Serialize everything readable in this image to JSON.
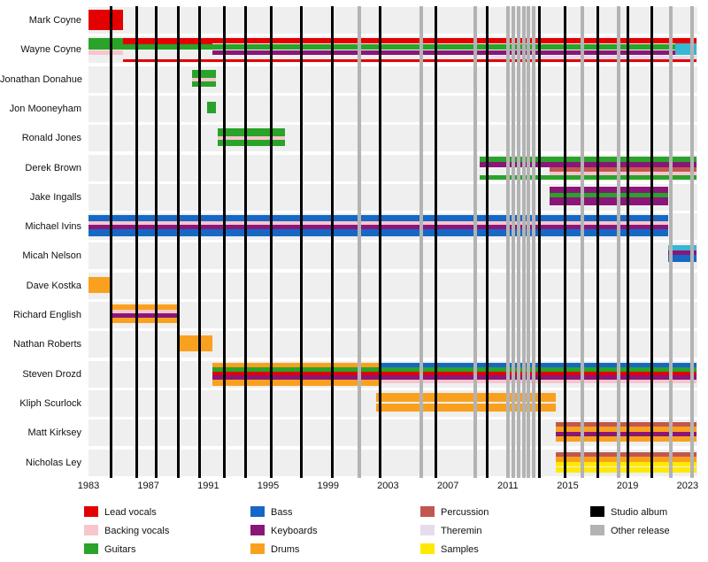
{
  "chart_data": {
    "type": "timeline",
    "description": "Band members timeline with instrument stripes per member and vertical release lines",
    "x_axis": {
      "min": 1983,
      "max": 2023.6,
      "tick_years": [
        1983,
        1987,
        1991,
        1995,
        1999,
        2003,
        2007,
        2011,
        2015,
        2019,
        2023
      ]
    },
    "colors": {
      "lead_vocals": "#e30000",
      "backing_vocals": "#f7c5cc",
      "guitars": "#29a329",
      "bass": "#1668c4",
      "keyboards": "#8a1679",
      "drums": "#f9a11f",
      "percussion": "#c1574f",
      "theremin": "#e6dcee",
      "samples": "#ffe900",
      "studio_album": "#000000",
      "other_release": "#b3b3b3",
      "accent_cyan": "#38b7d2",
      "row_background": "#efefef"
    },
    "members": [
      {
        "name": "Mark Coyne",
        "bars": [
          {
            "instrument": "lead_vocals",
            "start": 1983,
            "end": 1985.3,
            "t": 3,
            "h": 23
          }
        ]
      },
      {
        "name": "Wayne Coyne",
        "bars": [
          {
            "instrument": "guitars",
            "start": 1983,
            "end": 1985.3,
            "t": 2,
            "h": 7
          },
          {
            "instrument": "lead_vocals",
            "start": 1985.3,
            "end": 1991.3,
            "t": 2,
            "h": 8
          },
          {
            "instrument": "lead_vocals",
            "start": 1991.3,
            "end": 2023.6,
            "t": 2,
            "h": 6
          },
          {
            "instrument": "guitars",
            "start": 1983,
            "end": 2023.6,
            "t": 9,
            "h": 6
          },
          {
            "instrument": "backing_vocals",
            "start": 1983,
            "end": 1985.3,
            "t": 16,
            "h": 5
          },
          {
            "instrument": "keyboards",
            "start": 1991.3,
            "end": 2023.6,
            "t": 16,
            "h": 5
          },
          {
            "instrument": "theremin",
            "start": 2009.6,
            "end": 2023.6,
            "t": 22,
            "h": 4
          },
          {
            "instrument": "lead_vocals",
            "start": 1985.3,
            "end": 2023.6,
            "t": 26,
            "h": 3
          },
          {
            "instrument": "accent_cyan",
            "start": 2022.2,
            "end": 2023.6,
            "t": 8,
            "h": 13
          }
        ]
      },
      {
        "name": "Jonathan Donahue",
        "bars": [
          {
            "instrument": "guitars",
            "start": 1989.9,
            "end": 1991.5,
            "t": 4,
            "h": 9
          },
          {
            "instrument": "backing_vocals",
            "start": 1989.9,
            "end": 1991.5,
            "t": 13,
            "h": 4
          },
          {
            "instrument": "guitars",
            "start": 1989.9,
            "end": 1991.5,
            "t": 17,
            "h": 6
          }
        ]
      },
      {
        "name": "Jon Mooneyham",
        "bars": [
          {
            "instrument": "guitars",
            "start": 1990.9,
            "end": 1991.5,
            "t": 7,
            "h": 13
          }
        ]
      },
      {
        "name": "Ronald Jones",
        "bars": [
          {
            "instrument": "guitars",
            "start": 1991.6,
            "end": 1996.1,
            "t": 4,
            "h": 9
          },
          {
            "instrument": "backing_vocals",
            "start": 1991.6,
            "end": 1996.1,
            "t": 13,
            "h": 4
          },
          {
            "instrument": "guitars",
            "start": 1991.6,
            "end": 1996.1,
            "t": 17,
            "h": 7
          }
        ]
      },
      {
        "name": "Derek Brown",
        "bars": [
          {
            "instrument": "guitars",
            "start": 2009.1,
            "end": 2023.6,
            "t": 2,
            "h": 6
          },
          {
            "instrument": "keyboards",
            "start": 2009.1,
            "end": 2023.6,
            "t": 8,
            "h": 6
          },
          {
            "instrument": "percussion",
            "start": 2013.8,
            "end": 2023.6,
            "t": 14,
            "h": 5
          },
          {
            "instrument": "backing_vocals",
            "start": 2013.8,
            "end": 2023.6,
            "t": 19,
            "h": 4
          },
          {
            "instrument": "guitars",
            "start": 2009.1,
            "end": 2023.6,
            "t": 23,
            "h": 5
          }
        ]
      },
      {
        "name": "Jake Ingalls",
        "bars": [
          {
            "instrument": "keyboards",
            "start": 2013.8,
            "end": 2021.7,
            "t": 3,
            "h": 7
          },
          {
            "instrument": "guitars",
            "start": 2013.8,
            "end": 2021.7,
            "t": 10,
            "h": 5
          },
          {
            "instrument": "keyboards",
            "start": 2013.8,
            "end": 2021.7,
            "t": 15,
            "h": 9
          }
        ]
      },
      {
        "name": "Michael Ivins",
        "bars": [
          {
            "instrument": "bass",
            "start": 1983,
            "end": 2021.7,
            "t": 2,
            "h": 7
          },
          {
            "instrument": "backing_vocals",
            "start": 1983,
            "end": 2021.7,
            "t": 9,
            "h": 4
          },
          {
            "instrument": "keyboards",
            "start": 1983,
            "end": 2021.7,
            "t": 13,
            "h": 5
          },
          {
            "instrument": "bass",
            "start": 1983,
            "end": 2021.7,
            "t": 18,
            "h": 8
          }
        ]
      },
      {
        "name": "Micah Nelson",
        "bars": [
          {
            "instrument": "accent_cyan",
            "start": 2021.7,
            "end": 2023.6,
            "t": 3,
            "h": 6
          },
          {
            "instrument": "keyboards",
            "start": 2021.7,
            "end": 2023.6,
            "t": 9,
            "h": 5
          },
          {
            "instrument": "bass",
            "start": 2021.7,
            "end": 2023.6,
            "t": 14,
            "h": 8
          }
        ]
      },
      {
        "name": "Dave Kostka",
        "bars": [
          {
            "instrument": "drums",
            "start": 1983,
            "end": 1984.4,
            "t": 5,
            "h": 18
          }
        ]
      },
      {
        "name": "Richard English",
        "bars": [
          {
            "instrument": "drums",
            "start": 1984.4,
            "end": 1988.9,
            "t": 3,
            "h": 6
          },
          {
            "instrument": "backing_vocals",
            "start": 1984.4,
            "end": 1988.9,
            "t": 9,
            "h": 4
          },
          {
            "instrument": "keyboards",
            "start": 1984.4,
            "end": 1988.9,
            "t": 13,
            "h": 5
          },
          {
            "instrument": "drums",
            "start": 1984.4,
            "end": 1988.9,
            "t": 18,
            "h": 6
          }
        ]
      },
      {
        "name": "Nathan Roberts",
        "bars": [
          {
            "instrument": "drums",
            "start": 1988.9,
            "end": 1991.3,
            "t": 5,
            "h": 18
          }
        ]
      },
      {
        "name": "Steven Drozd",
        "bars": [
          {
            "instrument": "drums",
            "start": 1991.3,
            "end": 2002.4,
            "t": 2,
            "h": 5
          },
          {
            "instrument": "bass",
            "start": 2002.4,
            "end": 2023.6,
            "t": 2,
            "h": 5
          },
          {
            "instrument": "guitars",
            "start": 1991.3,
            "end": 2023.6,
            "t": 7,
            "h": 5
          },
          {
            "instrument": "lead_vocals",
            "start": 1991.3,
            "end": 2023.6,
            "t": 12,
            "h": 4
          },
          {
            "instrument": "keyboards",
            "start": 1991.3,
            "end": 2023.6,
            "t": 16,
            "h": 5
          },
          {
            "instrument": "drums",
            "start": 1991.3,
            "end": 2002.4,
            "t": 21,
            "h": 7
          },
          {
            "instrument": "backing_vocals",
            "start": 2002.4,
            "end": 2023.6,
            "t": 21,
            "h": 4
          }
        ]
      },
      {
        "name": "Kliph Scurlock",
        "bars": [
          {
            "instrument": "drums",
            "start": 2002.2,
            "end": 2014.2,
            "t": 3,
            "h": 10
          },
          {
            "instrument": "drums",
            "start": 2002.2,
            "end": 2014.2,
            "t": 15,
            "h": 9
          }
        ]
      },
      {
        "name": "Matt Kirksey",
        "bars": [
          {
            "instrument": "percussion",
            "start": 2014.2,
            "end": 2023.6,
            "t": 3,
            "h": 5
          },
          {
            "instrument": "drums",
            "start": 2014.2,
            "end": 2023.6,
            "t": 8,
            "h": 6
          },
          {
            "instrument": "keyboards",
            "start": 2014.2,
            "end": 2023.6,
            "t": 14,
            "h": 5
          },
          {
            "instrument": "drums",
            "start": 2014.2,
            "end": 2023.6,
            "t": 19,
            "h": 6
          }
        ]
      },
      {
        "name": "Nicholas Ley",
        "bars": [
          {
            "instrument": "percussion",
            "start": 2014.2,
            "end": 2023.6,
            "t": 3,
            "h": 5
          },
          {
            "instrument": "drums",
            "start": 2014.2,
            "end": 2023.6,
            "t": 8,
            "h": 6
          },
          {
            "instrument": "samples",
            "start": 2014.2,
            "end": 2023.6,
            "t": 14,
            "h": 5
          },
          {
            "instrument": "samples",
            "start": 2014.2,
            "end": 2023.6,
            "t": 20,
            "h": 6
          }
        ]
      }
    ],
    "releases": {
      "studio_albums": [
        1984.5,
        1986.2,
        1987.5,
        1989.0,
        1990.4,
        1992.1,
        1993.5,
        1995.2,
        1997.2,
        1999.3,
        2002.5,
        2006.2,
        2009.6,
        2013.1,
        2014.8,
        2017.0,
        2019.0,
        2020.6
      ],
      "other_releases": [
        2001.1,
        2005.2,
        2008.8,
        2011.0,
        2011.35,
        2011.7,
        2012.05,
        2012.4,
        2012.75,
        2016.0,
        2018.4,
        2021.9,
        2023.3
      ]
    },
    "legend": [
      {
        "key": "lead_vocals",
        "label": "Lead vocals",
        "col": 0
      },
      {
        "key": "backing_vocals",
        "label": "Backing vocals",
        "col": 0
      },
      {
        "key": "guitars",
        "label": "Guitars",
        "col": 0
      },
      {
        "key": "bass",
        "label": "Bass",
        "col": 1
      },
      {
        "key": "keyboards",
        "label": "Keyboards",
        "col": 1
      },
      {
        "key": "drums",
        "label": "Drums",
        "col": 1
      },
      {
        "key": "percussion",
        "label": "Percussion",
        "col": 2
      },
      {
        "key": "theremin",
        "label": "Theremin",
        "col": 2
      },
      {
        "key": "samples",
        "label": "Samples",
        "col": 2
      },
      {
        "key": "studio_album",
        "label": "Studio album",
        "col": 3
      },
      {
        "key": "other_release",
        "label": "Other release",
        "col": 3
      }
    ]
  }
}
